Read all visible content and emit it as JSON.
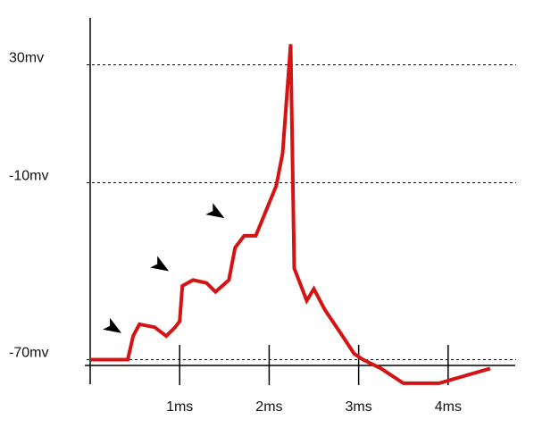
{
  "chart_data": {
    "type": "line",
    "title": "",
    "xlabel": "",
    "ylabel": "",
    "x_ticks": [
      {
        "value": 1,
        "label": "1ms"
      },
      {
        "value": 2,
        "label": "2ms"
      },
      {
        "value": 3,
        "label": "3ms"
      },
      {
        "value": 4,
        "label": "4ms"
      }
    ],
    "y_ticks": [
      {
        "value": 30,
        "label": "30mv"
      },
      {
        "value": -10,
        "label": "-10mv"
      },
      {
        "value": -70,
        "label": "-70mv"
      }
    ],
    "xlim": [
      0,
      4.75
    ],
    "ylim": [
      -85,
      45
    ],
    "grid": "dashed horizontal reference lines at -70, -10 and 30 mV",
    "series": [
      {
        "color": "#d41414",
        "points": [
          [
            0.0,
            -70
          ],
          [
            0.42,
            -70
          ],
          [
            0.48,
            -62
          ],
          [
            0.55,
            -58
          ],
          [
            0.72,
            -59
          ],
          [
            0.85,
            -62
          ],
          [
            0.95,
            -59
          ],
          [
            1.0,
            -57
          ],
          [
            1.03,
            -45
          ],
          [
            1.15,
            -43
          ],
          [
            1.3,
            -44
          ],
          [
            1.4,
            -47
          ],
          [
            1.55,
            -43
          ],
          [
            1.62,
            -32
          ],
          [
            1.72,
            -28
          ],
          [
            1.85,
            -28
          ],
          [
            2.08,
            -11
          ],
          [
            2.15,
            0
          ],
          [
            2.24,
            37
          ],
          [
            2.28,
            -39
          ],
          [
            2.42,
            -50
          ],
          [
            2.5,
            -46
          ],
          [
            2.62,
            -53
          ],
          [
            2.82,
            -62
          ],
          [
            2.95,
            -68
          ],
          [
            3.05,
            -70
          ],
          [
            3.25,
            -73
          ],
          [
            3.5,
            -78
          ],
          [
            3.9,
            -78
          ],
          [
            4.47,
            -73
          ]
        ]
      }
    ],
    "annotations": [
      {
        "type": "arrowhead",
        "x": 0.35,
        "y": -61
      },
      {
        "type": "arrowhead",
        "x": 0.88,
        "y": -40
      },
      {
        "type": "arrowhead",
        "x": 1.5,
        "y": -22
      }
    ],
    "axis_color": "#000000"
  }
}
